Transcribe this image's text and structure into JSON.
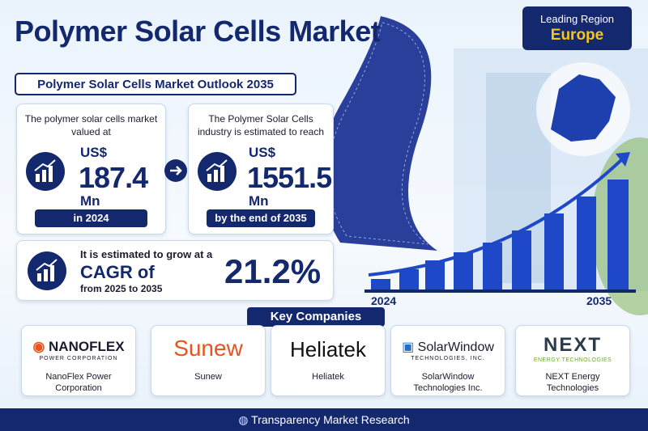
{
  "title": "Polymer Solar Cells Market",
  "leading_region": {
    "label": "Leading Region",
    "value": "Europe"
  },
  "outlook_title": "Polymer Solar Cells Market Outlook 2035",
  "stats": [
    {
      "text": "The polymer solar cells market valued at",
      "currency": "US$",
      "value": "187.4",
      "unit": "Mn",
      "footer": "in 2024"
    },
    {
      "text": "The Polymer Solar Cells industry is estimated to reach",
      "currency": "US$",
      "value": "1551.5",
      "unit": "Mn",
      "footer": "by the end of 2035"
    }
  ],
  "cagr": {
    "line1": "It is estimated to grow at a",
    "line2": "CAGR of",
    "line3": "from 2025 to 2035",
    "value": "21.2%"
  },
  "growth_graphic": {
    "start_label": "2024",
    "end_label": "2035"
  },
  "key_companies": {
    "title": "Key Companies",
    "companies": [
      {
        "logo": "NANOFLEX",
        "logo_sub": "POWER CORPORATION",
        "name": "NanoFlex Power Corporation"
      },
      {
        "logo": "Sunew",
        "name": "Sunew"
      },
      {
        "logo": "Heliatek",
        "name": "Heliatek"
      },
      {
        "logo": "SolarWindow",
        "logo_sub": "TECHNOLOGIES, INC.",
        "name": "SolarWindow Technologies Inc."
      },
      {
        "logo": "NEXT",
        "logo_sub": "ENERGY TECHNOLOGIES",
        "name": "NEXT Energy Technologies"
      }
    ]
  },
  "footer": "Transparency Market Research"
}
